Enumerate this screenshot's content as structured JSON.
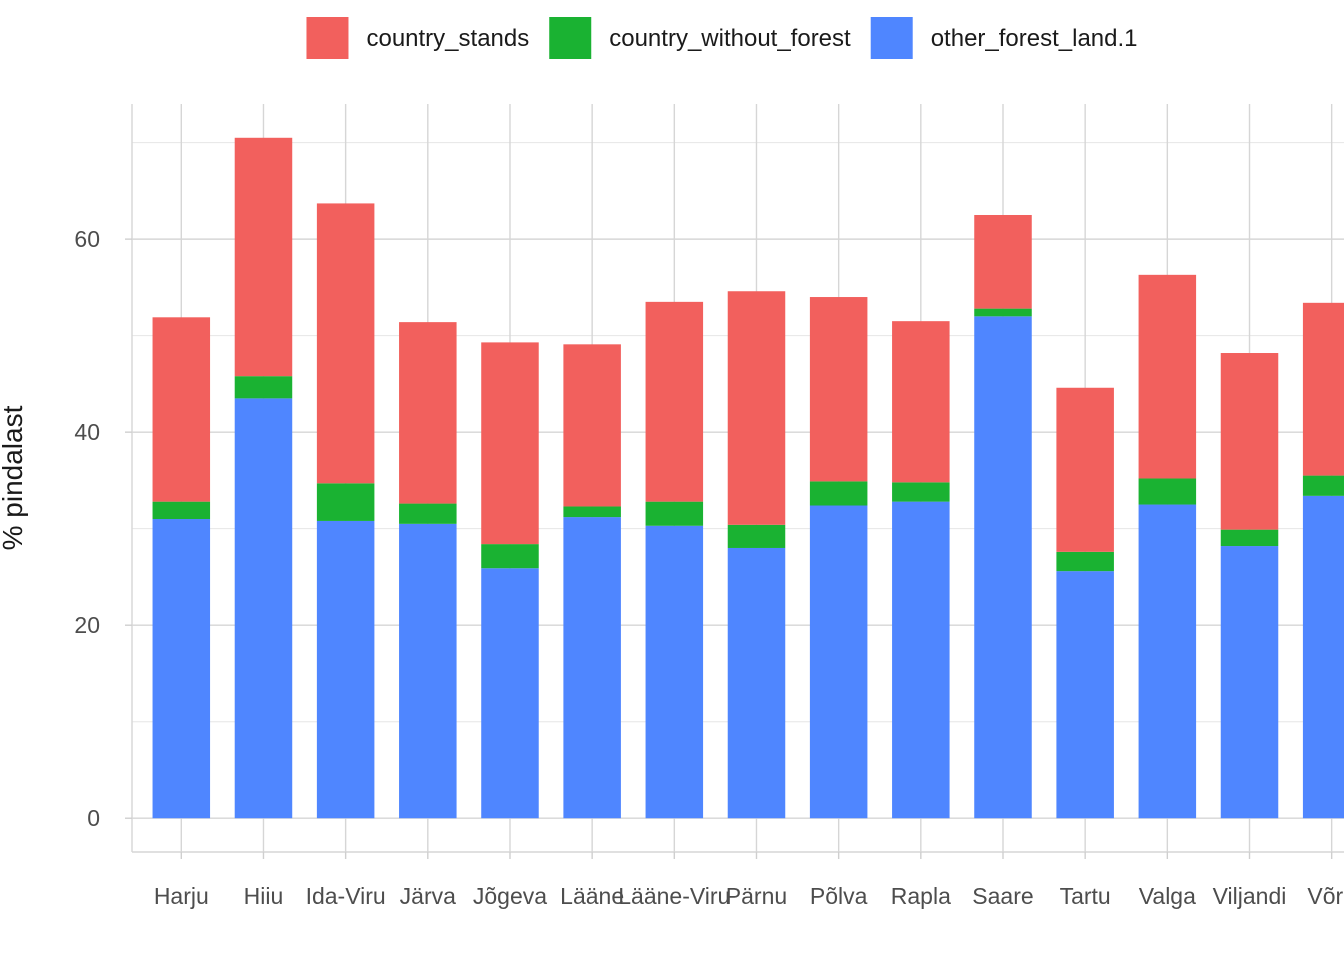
{
  "chart_data": {
    "type": "bar",
    "stacked": true,
    "ylabel": "% pindalast",
    "xlabel": "",
    "title": "",
    "ylim": [
      -3.5,
      74
    ],
    "yticks": [
      0,
      20,
      40,
      60
    ],
    "yminor": [
      10,
      30,
      50,
      70
    ],
    "grid": true,
    "legend_position": "top",
    "categories": [
      "Harju",
      "Hiiu",
      "Ida-Viru",
      "Järva",
      "Jõgeva",
      "Lääne",
      "Lääne-Viru",
      "Pärnu",
      "Põlva",
      "Rapla",
      "Saare",
      "Tartu",
      "Valga",
      "Viljandi",
      "Võru"
    ],
    "series": [
      {
        "name": "other_forest_land.1",
        "color": "#4f86ff",
        "values": [
          31.0,
          43.5,
          30.8,
          30.5,
          25.9,
          31.2,
          30.3,
          28.0,
          32.4,
          32.8,
          52.0,
          25.6,
          32.5,
          28.2,
          33.4
        ]
      },
      {
        "name": "country_without_forest",
        "color": "#1ab232",
        "values": [
          1.8,
          2.3,
          3.9,
          2.1,
          2.5,
          1.1,
          2.5,
          2.4,
          2.5,
          2.0,
          0.8,
          2.0,
          2.7,
          1.7,
          2.1
        ]
      },
      {
        "name": "country_stands",
        "color": "#f2605d",
        "values": [
          19.1,
          24.7,
          29.0,
          18.8,
          20.9,
          16.8,
          20.7,
          24.2,
          19.1,
          16.7,
          9.7,
          17.0,
          21.1,
          18.3,
          17.9
        ]
      }
    ],
    "legend_order": [
      "country_stands",
      "country_without_forest",
      "other_forest_land.1"
    ]
  }
}
